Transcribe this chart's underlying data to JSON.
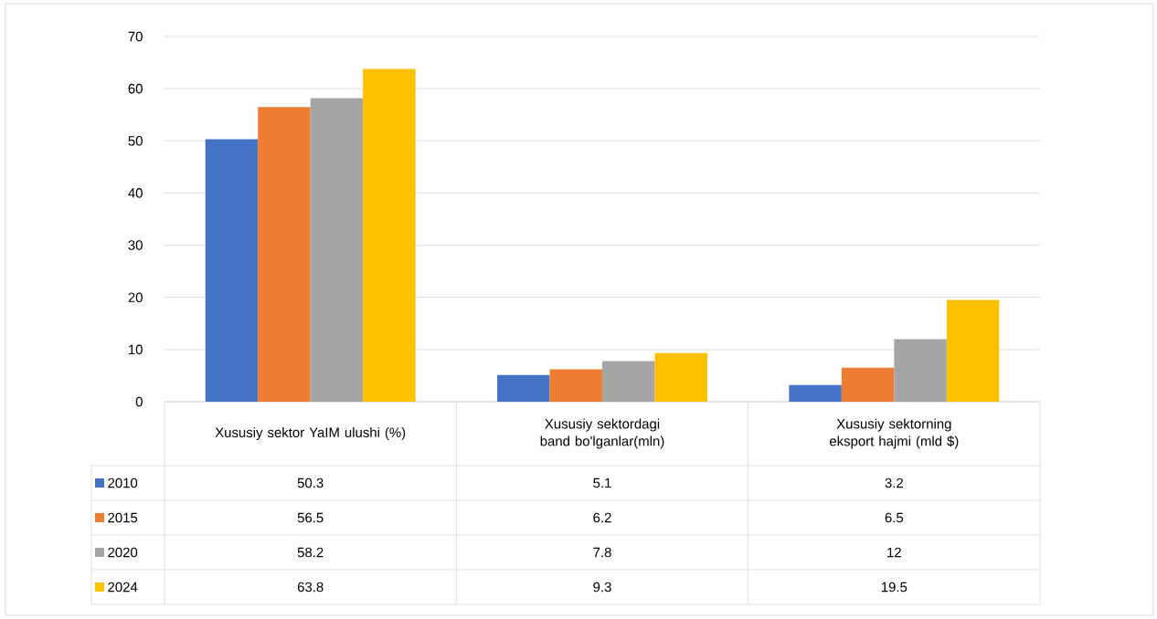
{
  "chart_data": {
    "type": "bar",
    "categories": [
      "Xususiy sektor YaIM ulushi (%)",
      "Xususiy sektordagi band bo'lganlar(mln)",
      "Xususiy sektorning eksport hajmi (mld $)"
    ],
    "series": [
      {
        "name": "2010",
        "color": "#4472c4",
        "values": [
          50.3,
          5.1,
          3.2
        ]
      },
      {
        "name": "2015",
        "color": "#ed7d31",
        "values": [
          56.5,
          6.2,
          6.5
        ]
      },
      {
        "name": "2020",
        "color": "#a5a5a5",
        "values": [
          58.2,
          7.8,
          12
        ]
      },
      {
        "name": "2024",
        "color": "#ffc000",
        "values": [
          63.8,
          9.3,
          19.5
        ]
      }
    ],
    "ylim": [
      0,
      70
    ],
    "yticks": [
      0,
      10,
      20,
      30,
      40,
      50,
      60,
      70
    ],
    "grid": "y",
    "legend": "bottom",
    "data_labels": true
  }
}
